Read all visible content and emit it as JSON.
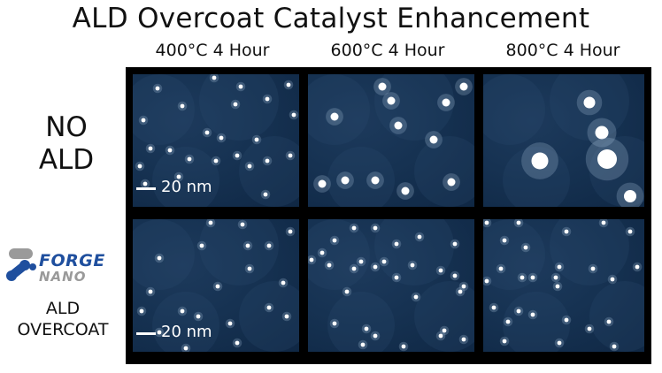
{
  "title": "ALD Overcoat Catalyst Enhancement",
  "columns": [
    "400°C 4 Hour",
    "600°C 4 Hour",
    "800°C 4 Hour"
  ],
  "rows": [
    {
      "label_lines": [
        "NO",
        "ALD"
      ]
    },
    {
      "label_lines": [
        "ALD",
        "OVERCOAT"
      ]
    }
  ],
  "logo": {
    "line1": "FORGE",
    "line2": "NANO"
  },
  "scale_bar_text": "20 nm",
  "colors": {
    "panel_bg": "#163252",
    "particle": "#ffffff",
    "frame": "#000000",
    "logo_blue": "#1f4f9e",
    "logo_gray": "#9a9a9a"
  },
  "panel_ids": [
    "no-ald-400",
    "no-ald-600",
    "no-ald-800",
    "ald-400",
    "ald-600",
    "ald-800"
  ]
}
